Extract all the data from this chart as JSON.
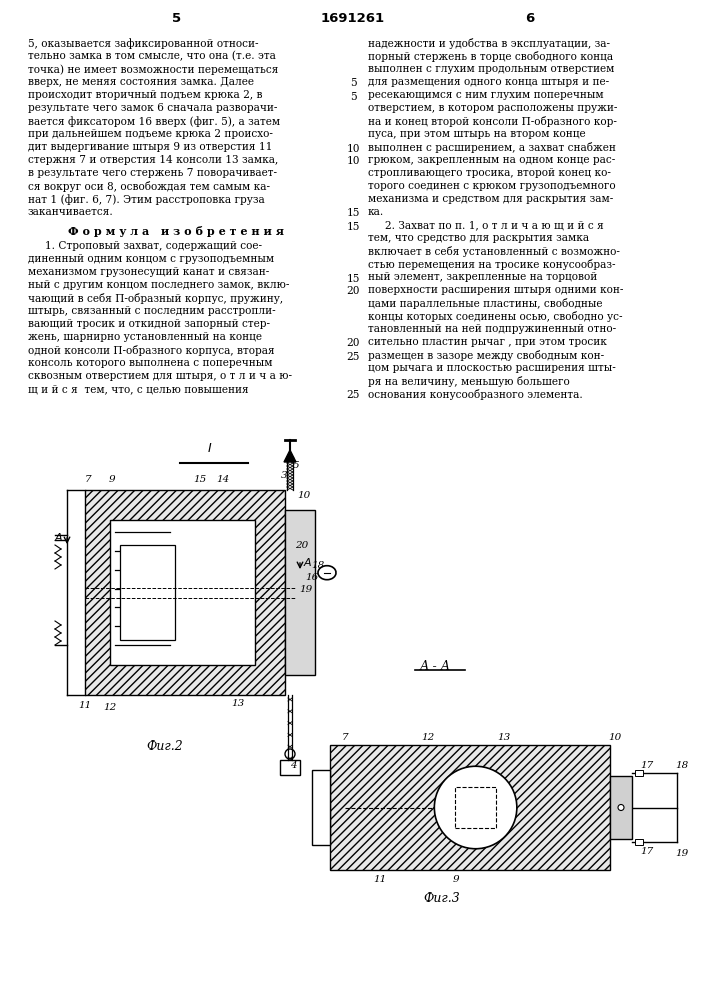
{
  "page_number_left": "5",
  "patent_number": "1691261",
  "page_number_right": "6",
  "left_column_text_lines": [
    "5, оказывается зафиксированной относи-",
    "тельно замка в том смысле, что она (т.е. эта",
    "точка) не имеет возможности перемещаться",
    "вверх, не меняя состояния замка. Далее",
    "происходит вторичный подъем крюка 2, в",
    "результате чего замок 6 сначала разворачи-",
    "вается фиксатором 16 вверх (фиг. 5), а затем",
    "при дальнейшем подъеме крюка 2 происхо-",
    "дит выдергивание штыря 9 из отверстия 11",
    "стержня 7 и отверстия 14 консоли 13 замка,",
    "в результате чего стержень 7 поворачивает-",
    "ся вокруг оси 8, освобождая тем самым ка-",
    "нат 1 (фиг. 6, 7). Этим расстроповка груза",
    "заканчивается."
  ],
  "formula_heading": "Ф о р м у л а   и з о б р е т е н и я",
  "left_formula_lines": [
    "     1. Строповый захват, содержащий сое-",
    "диненный одним концом с грузоподъемным",
    "механизмом грузонесущий канат и связан-",
    "ный с другим концом последнего замок, вклю-",
    "чающий в себя П-образный корпус, пружину,",
    "штырь, связанный с последним расстропли-",
    "вающий тросик и откидной запорный стер-",
    "жень, шарнирно установленный на конце",
    "одной консоли П-образного корпуса, вторая",
    "консоль которого выполнена с поперечным",
    "сквозным отверстием для штыря, о т л и ч а ю-",
    "щ и й с я  тем, что, с целью повышения"
  ],
  "right_column_lines": [
    "надежности и удобства в эксплуатации, за-",
    "порный стержень в торце свободного конца",
    "выполнен с глухим продольным отверстием",
    "для размещения одного конца штыря и пе-",
    "ресекающимся с ним глухим поперечным",
    "отверстием, в котором расположены пружи-",
    "на и конец второй консоли П-образного кор-",
    "пуса, при этом штырь на втором конце",
    "выполнен с расширением, а захват снабжен",
    "грюком, закрепленным на одном конце рас-",
    "стропливающего тросика, второй конец ко-",
    "торого соединен с крюком грузоподъемного",
    "механизма и средством для раскрытия зам-",
    "ка.",
    "     2. Захват по п. 1, о т л и ч а ю щ и й с я",
    "тем, что средство для раскрытия замка",
    "включает в себя установленный с возможно-",
    "стью перемещения на тросике конусообраз-",
    "ный элемент, закрепленные на торцовой",
    "поверхности расширения штыря одними кон-",
    "цами параллельные пластины, свободные",
    "концы которых соединены осью, свободно ус-",
    "тановленный на ней подпружиненный отно-",
    "сительно пластин рычаг , при этом тросик",
    "размещен в зазоре между свободным кон-",
    "цом рычага и плоскостью расширения шты-",
    "ря на величину, меньшую большего",
    "основания конусообразного элемента."
  ],
  "left_line_numbers": {
    "4": 4,
    "9": 9
  },
  "mid_line_numbers_left": {
    "5": 4,
    "10": 9,
    "15": 14,
    "20": 19,
    "25": 24
  },
  "mid_line_numbers_right": {
    "5": 3,
    "10": 8,
    "15": 13,
    "20": 19,
    "25": 24
  }
}
